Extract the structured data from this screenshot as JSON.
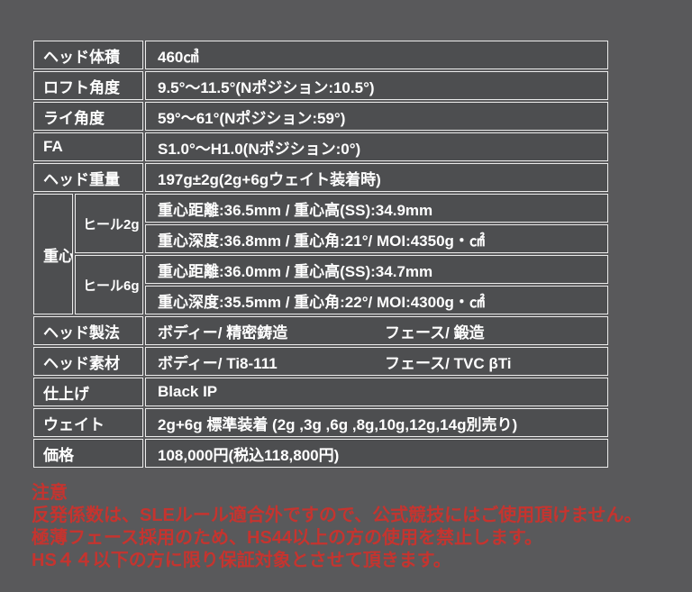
{
  "page": {
    "background": "#59595b",
    "cell_background": "#4d4e50",
    "border_color": "#ebebeb",
    "text_color": "#ffffff",
    "notice_color": "#c5342f"
  },
  "spec_table": {
    "rows": [
      {
        "label": "ヘッド体積",
        "value": "460㎤"
      },
      {
        "label": "ロフト角度",
        "value": "9.5°〜11.5°(Nポジション:10.5°)"
      },
      {
        "label": "ライ角度",
        "value": "59°〜61°(Nポジション:59°)"
      },
      {
        "label": "FA",
        "value": "S1.0°〜H1.0(Nポジション:0°)"
      },
      {
        "label": "ヘッド重量",
        "value": "197g±2g(2g+6gウェイト装着時)"
      }
    ],
    "gravity": {
      "label": "重心",
      "heel2g": {
        "sub_label": "ヒール2g",
        "row1": "重心距離:36.5mm / 重心高(SS):34.9mm",
        "row2": "重心深度:36.8mm / 重心角:21°/ MOI:4350g・㎠"
      },
      "heel6g": {
        "sub_label": "ヒール6g",
        "row1": "重心距離:36.0mm / 重心高(SS):34.7mm",
        "row2": "重心深度:35.5mm / 重心角:22°/ MOI:4300g・㎠"
      }
    },
    "construction": {
      "label": "ヘッド製法",
      "body": "ボディー/ 精密鋳造",
      "face": "フェース/ 鍛造"
    },
    "material": {
      "label": "ヘッド素材",
      "body": "ボディー/ Ti8-111",
      "face": "フェース/ TVC βTi"
    },
    "finish": {
      "label": "仕上げ",
      "value": "Black IP"
    },
    "weight": {
      "label": "ウェイト",
      "value": "2g+6g 標準装着 (2g ,3g ,6g ,8g,10g,12g,14g別売り)"
    },
    "price": {
      "label": "価格",
      "value": "108,000円(税込118,800円)"
    }
  },
  "notice": {
    "heading": "注意",
    "lines": [
      "反発係数は、SLEルール適合外ですので、公式競技にはご使用頂けません。",
      "極薄フェース採用のため、HS44以上の方の使用を禁止します。",
      "HS４４以下の方に限り保証対象とさせて頂きます。"
    ]
  }
}
